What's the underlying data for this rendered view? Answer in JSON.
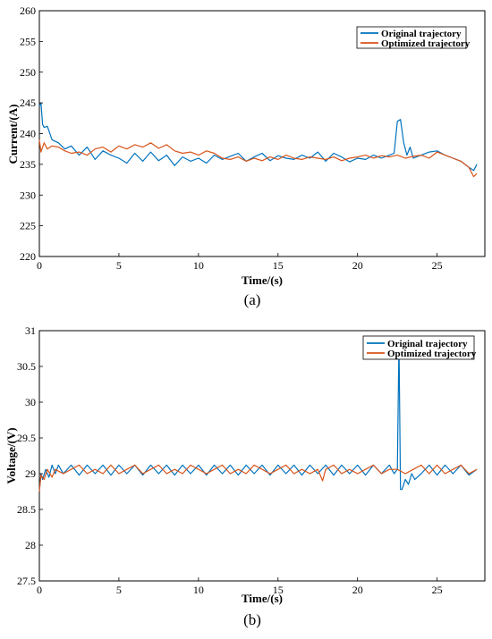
{
  "chart_data": [
    {
      "type": "line",
      "panel_label": "(a)",
      "xlabel": "Time/(s)",
      "ylabel": "Current/(A)",
      "xlim": [
        0,
        28
      ],
      "ylim": [
        220,
        260
      ],
      "xticks": [
        0,
        5,
        10,
        15,
        20,
        25
      ],
      "yticks": [
        220,
        225,
        230,
        235,
        240,
        245,
        250,
        255,
        260
      ],
      "legend_position": "top-right",
      "grid": false,
      "series": [
        {
          "name": "Original trajectory",
          "color": "#0072BD",
          "x": [
            0,
            0.1,
            0.2,
            0.3,
            0.5,
            0.8,
            1.2,
            1.6,
            2.0,
            2.5,
            3.0,
            3.5,
            4.0,
            4.5,
            5.0,
            5.5,
            6.0,
            6.5,
            7.0,
            7.5,
            8.0,
            8.5,
            9.0,
            9.5,
            10.0,
            10.5,
            11.0,
            11.5,
            12.0,
            12.5,
            13.0,
            13.5,
            14.0,
            14.5,
            15.0,
            15.5,
            16.0,
            16.5,
            17.0,
            17.5,
            18.0,
            18.5,
            19.0,
            19.5,
            20.0,
            20.5,
            21.0,
            21.5,
            22.0,
            22.3,
            22.5,
            22.7,
            22.9,
            23.1,
            23.3,
            23.5,
            24.0,
            24.5,
            25.0,
            25.5,
            26.0,
            26.5,
            27.0,
            27.3,
            27.5
          ],
          "y": [
            244.5,
            245.0,
            241.5,
            241.0,
            241.2,
            239.0,
            238.5,
            237.5,
            238.0,
            236.5,
            237.8,
            235.8,
            237.2,
            236.5,
            236.0,
            235.2,
            236.8,
            235.5,
            237.0,
            235.6,
            236.5,
            234.8,
            236.2,
            235.5,
            236.0,
            235.2,
            236.5,
            235.8,
            236.3,
            236.8,
            235.5,
            236.2,
            236.8,
            235.6,
            236.4,
            236.0,
            235.8,
            236.5,
            236.0,
            237.0,
            235.5,
            236.8,
            236.2,
            235.4,
            236.0,
            235.8,
            236.5,
            236.0,
            236.5,
            236.8,
            242.0,
            242.3,
            238.5,
            236.5,
            237.8,
            236.0,
            236.5,
            237.0,
            237.2,
            236.5,
            236.0,
            235.5,
            234.5,
            234.0,
            235.0
          ]
        },
        {
          "name": "Optimized trajectory",
          "color": "#D95319",
          "x": [
            0,
            0.1,
            0.3,
            0.5,
            0.8,
            1.2,
            1.6,
            2.0,
            2.5,
            3.0,
            3.5,
            4.0,
            4.5,
            5.0,
            5.5,
            6.0,
            6.5,
            7.0,
            7.5,
            8.0,
            8.5,
            9.0,
            9.5,
            10.0,
            10.5,
            11.0,
            11.5,
            12.0,
            12.5,
            13.0,
            13.5,
            14.0,
            14.5,
            15.0,
            15.5,
            16.0,
            16.5,
            17.0,
            17.5,
            18.0,
            18.5,
            19.0,
            19.5,
            20.0,
            20.5,
            21.0,
            21.5,
            22.0,
            22.5,
            23.0,
            23.5,
            24.0,
            24.5,
            25.0,
            25.5,
            26.0,
            26.5,
            27.0,
            27.3,
            27.5
          ],
          "y": [
            239.0,
            237.0,
            238.5,
            237.5,
            238.0,
            237.8,
            237.2,
            236.8,
            237.0,
            236.5,
            237.5,
            237.8,
            237.0,
            238.0,
            237.5,
            238.2,
            237.8,
            238.5,
            237.6,
            238.2,
            237.2,
            236.8,
            237.0,
            236.5,
            237.2,
            236.8,
            236.0,
            235.8,
            236.2,
            235.5,
            236.0,
            235.6,
            236.2,
            235.8,
            236.5,
            236.0,
            235.8,
            236.2,
            236.0,
            235.8,
            236.2,
            235.6,
            236.0,
            236.2,
            236.5,
            236.0,
            236.4,
            236.2,
            236.5,
            236.0,
            236.3,
            236.5,
            236.0,
            237.0,
            236.5,
            236.0,
            235.5,
            234.5,
            233.0,
            233.5
          ]
        }
      ]
    },
    {
      "type": "line",
      "panel_label": "(b)",
      "xlabel": "Time/(s)",
      "ylabel": "Voltage/(V)",
      "xlim": [
        0,
        28
      ],
      "ylim": [
        27.5,
        31
      ],
      "xticks": [
        0,
        5,
        10,
        15,
        20,
        25
      ],
      "yticks": [
        27.5,
        28,
        28.5,
        29,
        29.5,
        30,
        30.5,
        31
      ],
      "legend_position": "top-right",
      "grid": false,
      "series": [
        {
          "name": "Original trajectory",
          "color": "#0072BD",
          "x": [
            0,
            0.1,
            0.2,
            0.4,
            0.6,
            0.8,
            1.0,
            1.2,
            1.5,
            2.0,
            2.5,
            3.0,
            3.5,
            4.0,
            4.5,
            5.0,
            5.5,
            6.0,
            6.5,
            7.0,
            7.5,
            8.0,
            8.5,
            9.0,
            9.5,
            10.0,
            10.5,
            11.0,
            11.5,
            12.0,
            12.5,
            13.0,
            13.5,
            14.0,
            14.5,
            15.0,
            15.5,
            16.0,
            16.5,
            17.0,
            17.5,
            18.0,
            18.5,
            19.0,
            19.5,
            20.0,
            20.5,
            21.0,
            21.5,
            22.0,
            22.3,
            22.5,
            22.6,
            22.7,
            22.8,
            23.0,
            23.2,
            23.4,
            23.6,
            24.0,
            24.5,
            25.0,
            25.5,
            26.0,
            26.5,
            27.0,
            27.5
          ],
          "y": [
            28.75,
            29.0,
            28.92,
            29.06,
            28.95,
            29.12,
            29.0,
            29.12,
            29.0,
            29.12,
            28.98,
            29.12,
            29.0,
            29.12,
            28.98,
            29.12,
            29.0,
            29.12,
            28.98,
            29.12,
            29.0,
            29.12,
            28.98,
            29.12,
            29.0,
            29.12,
            28.98,
            29.12,
            29.0,
            29.12,
            28.98,
            29.12,
            29.0,
            29.12,
            28.98,
            29.12,
            29.0,
            29.12,
            28.98,
            29.12,
            29.0,
            29.12,
            28.98,
            29.12,
            29.0,
            29.12,
            28.98,
            29.12,
            29.0,
            29.12,
            29.0,
            29.06,
            30.85,
            28.78,
            28.78,
            28.92,
            28.85,
            29.0,
            28.92,
            29.0,
            29.12,
            28.98,
            29.12,
            29.0,
            29.12,
            28.98,
            29.06
          ]
        },
        {
          "name": "Optimized trajectory",
          "color": "#D95319",
          "x": [
            0,
            0.1,
            0.3,
            0.5,
            0.8,
            1.0,
            1.5,
            2.0,
            2.5,
            3.0,
            3.5,
            4.0,
            4.5,
            5.0,
            5.5,
            6.0,
            6.5,
            7.0,
            7.5,
            8.0,
            8.5,
            9.0,
            9.5,
            10.0,
            10.5,
            11.0,
            11.5,
            12.0,
            12.5,
            13.0,
            13.5,
            14.0,
            14.5,
            15.0,
            15.5,
            16.0,
            16.5,
            17.0,
            17.5,
            17.8,
            18.0,
            18.5,
            19.0,
            19.5,
            20.0,
            20.5,
            21.0,
            21.5,
            22.0,
            22.5,
            23.0,
            23.5,
            24.0,
            24.5,
            25.0,
            25.5,
            26.0,
            26.5,
            27.0,
            27.5
          ],
          "y": [
            28.75,
            28.98,
            28.92,
            29.06,
            28.95,
            29.06,
            29.0,
            29.06,
            29.12,
            29.0,
            29.06,
            29.0,
            29.12,
            29.0,
            29.06,
            29.12,
            29.0,
            29.06,
            29.12,
            29.0,
            29.06,
            29.0,
            29.12,
            29.06,
            29.0,
            29.06,
            29.12,
            29.0,
            29.06,
            29.0,
            29.12,
            29.06,
            29.0,
            29.06,
            29.12,
            29.0,
            29.06,
            29.0,
            29.06,
            28.9,
            29.06,
            29.12,
            29.0,
            29.06,
            29.0,
            29.06,
            29.12,
            29.0,
            29.06,
            29.06,
            29.0,
            29.06,
            29.12,
            29.0,
            29.12,
            29.0,
            29.06,
            29.12,
            29.0,
            29.06
          ]
        }
      ]
    }
  ]
}
